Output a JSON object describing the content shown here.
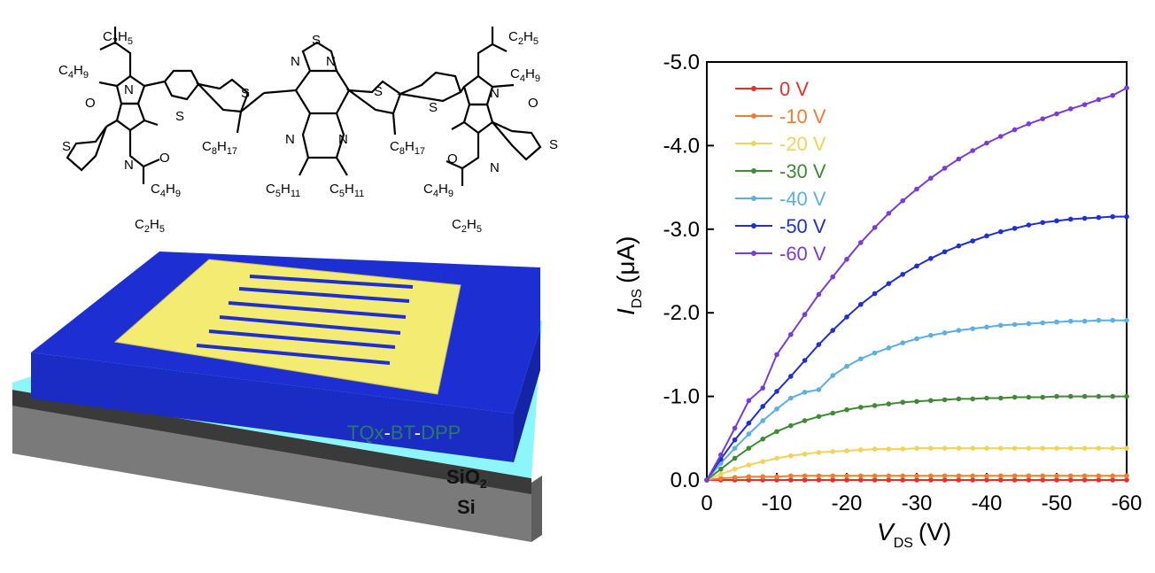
{
  "molecule": {
    "atoms": {
      "S": "S",
      "N": "N",
      "O": "O"
    },
    "substituents": {
      "c2h5": "C2H5",
      "c4h9": "C4H9",
      "c8h17": "C8H17",
      "c5h11": "C5H11"
    }
  },
  "device": {
    "layer_labels": {
      "tqx": "TQx",
      "dash1": "-",
      "bt": "BT",
      "dash2": "-",
      "dpp": "DPP",
      "sio2": "SiO2",
      "si": "Si"
    },
    "colors": {
      "polymer": "#1d2fd2",
      "sio2": "#8cf6fb",
      "si": "#7a7a7a",
      "gold": "#f4ec72",
      "text_green": "#2b7a5c"
    }
  },
  "chart_data": {
    "type": "line",
    "xlabel_main": "V",
    "xlabel_sub": "DS",
    "xlabel_unit": "(V)",
    "ylabel_main": "I",
    "ylabel_sub": "DS",
    "ylabel_unit": "(μA)",
    "xlim": [
      0,
      -60
    ],
    "ylim": [
      0,
      -5.0
    ],
    "xticks": [
      0,
      -10,
      -20,
      -30,
      -40,
      -50,
      -60
    ],
    "xtick_labels": [
      "0",
      "-10",
      "-20",
      "-30",
      "-40",
      "-50",
      "-60"
    ],
    "yticks": [
      0,
      -1,
      -2,
      -3,
      -4,
      -5
    ],
    "ytick_labels": [
      "0.0",
      "-1.0",
      "-2.0",
      "-3.0",
      "-4.0",
      "-5.0"
    ],
    "legend_position": "top-left",
    "x": [
      0,
      -2,
      -4,
      -6,
      -8,
      -10,
      -12,
      -14,
      -16,
      -18,
      -20,
      -22,
      -24,
      -26,
      -28,
      -30,
      -32,
      -34,
      -36,
      -38,
      -40,
      -42,
      -44,
      -46,
      -48,
      -50,
      -52,
      -54,
      -56,
      -58,
      -60
    ],
    "series": [
      {
        "name": "0 V",
        "color": "#e8302a",
        "values": [
          0,
          0,
          0,
          0,
          0,
          0,
          0,
          0,
          0,
          0,
          0,
          0,
          0,
          0,
          0,
          0,
          0,
          0,
          0,
          0,
          0,
          0,
          0,
          0,
          0,
          0,
          0,
          0,
          0,
          0,
          0
        ]
      },
      {
        "name": "-10 V",
        "color": "#ee7d32",
        "values": [
          0,
          -0.02,
          -0.03,
          -0.04,
          -0.04,
          -0.04,
          -0.05,
          -0.05,
          -0.05,
          -0.05,
          -0.05,
          -0.05,
          -0.05,
          -0.05,
          -0.05,
          -0.05,
          -0.05,
          -0.05,
          -0.05,
          -0.05,
          -0.05,
          -0.05,
          -0.05,
          -0.05,
          -0.05,
          -0.05,
          -0.05,
          -0.05,
          -0.05,
          -0.05,
          -0.05
        ]
      },
      {
        "name": "-20 V",
        "color": "#f2d35a",
        "values": [
          0,
          -0.07,
          -0.13,
          -0.18,
          -0.22,
          -0.26,
          -0.29,
          -0.31,
          -0.33,
          -0.34,
          -0.35,
          -0.36,
          -0.37,
          -0.37,
          -0.37,
          -0.38,
          -0.38,
          -0.38,
          -0.38,
          -0.38,
          -0.38,
          -0.38,
          -0.38,
          -0.38,
          -0.38,
          -0.38,
          -0.38,
          -0.38,
          -0.38,
          -0.38,
          -0.38
        ]
      },
      {
        "name": "-30 V",
        "color": "#3f8a35",
        "values": [
          0,
          -0.13,
          -0.26,
          -0.38,
          -0.49,
          -0.58,
          -0.65,
          -0.71,
          -0.76,
          -0.8,
          -0.84,
          -0.87,
          -0.89,
          -0.91,
          -0.93,
          -0.94,
          -0.95,
          -0.96,
          -0.97,
          -0.97,
          -0.98,
          -0.98,
          -0.99,
          -0.99,
          -0.99,
          -1.0,
          -1.0,
          -1.0,
          -1.0,
          -1.0,
          -1.0
        ]
      },
      {
        "name": "-40 V",
        "color": "#5aafe3",
        "values": [
          0,
          -0.2,
          -0.38,
          -0.55,
          -0.71,
          -0.85,
          -0.98,
          -1.05,
          -1.08,
          -1.25,
          -1.36,
          -1.45,
          -1.52,
          -1.58,
          -1.64,
          -1.69,
          -1.73,
          -1.76,
          -1.79,
          -1.81,
          -1.83,
          -1.85,
          -1.86,
          -1.87,
          -1.88,
          -1.89,
          -1.9,
          -1.9,
          -1.91,
          -1.91,
          -1.91
        ]
      },
      {
        "name": "-50 V",
        "color": "#1f2fd0",
        "values": [
          0,
          -0.25,
          -0.48,
          -0.68,
          -0.88,
          -1.06,
          -1.24,
          -1.43,
          -1.62,
          -1.79,
          -1.95,
          -2.1,
          -2.23,
          -2.35,
          -2.46,
          -2.56,
          -2.65,
          -2.73,
          -2.8,
          -2.86,
          -2.92,
          -2.97,
          -3.01,
          -3.05,
          -3.08,
          -3.1,
          -3.12,
          -3.13,
          -3.14,
          -3.15,
          -3.15
        ]
      },
      {
        "name": "-60 V",
        "color": "#7b3bd6",
        "values": [
          0,
          -0.3,
          -0.62,
          -0.95,
          -1.1,
          -1.5,
          -1.74,
          -1.98,
          -2.22,
          -2.43,
          -2.64,
          -2.84,
          -3.02,
          -3.19,
          -3.34,
          -3.48,
          -3.61,
          -3.73,
          -3.84,
          -3.94,
          -4.03,
          -4.11,
          -4.19,
          -4.26,
          -4.32,
          -4.38,
          -4.44,
          -4.49,
          -4.55,
          -4.6,
          -4.69
        ]
      }
    ]
  }
}
